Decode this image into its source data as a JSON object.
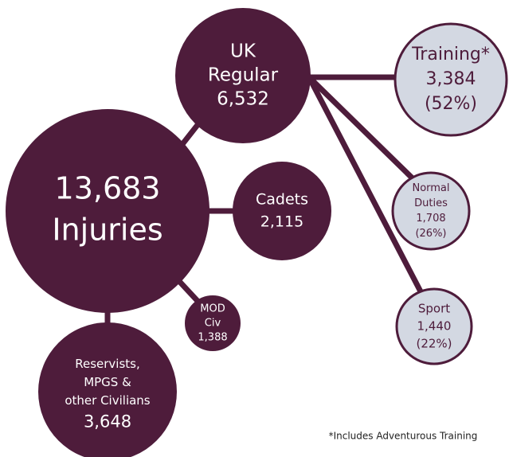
{
  "nodes": [
    {
      "lines": [
        "13,683",
        "Injuries"
      ]
    },
    {
      "lines": [
        "UK",
        "Regular",
        "6,532"
      ]
    },
    {
      "lines": [
        "Training*",
        "3,384",
        "(52%)"
      ]
    },
    {
      "lines": [
        "Normal",
        "Duties",
        "1,708",
        "(26%)"
      ]
    },
    {
      "lines": [
        "Sport",
        "1,440",
        "(22%)"
      ]
    },
    {
      "lines": [
        "Cadets",
        "2,115"
      ]
    },
    {
      "lines": [
        "MOD",
        "Civ",
        "1,388"
      ]
    },
    {
      "lines": [
        "Reservists,",
        "MPGS &",
        "other Civilians",
        "3,648"
      ]
    }
  ],
  "footnote": "*Includes Adventurous Training"
}
